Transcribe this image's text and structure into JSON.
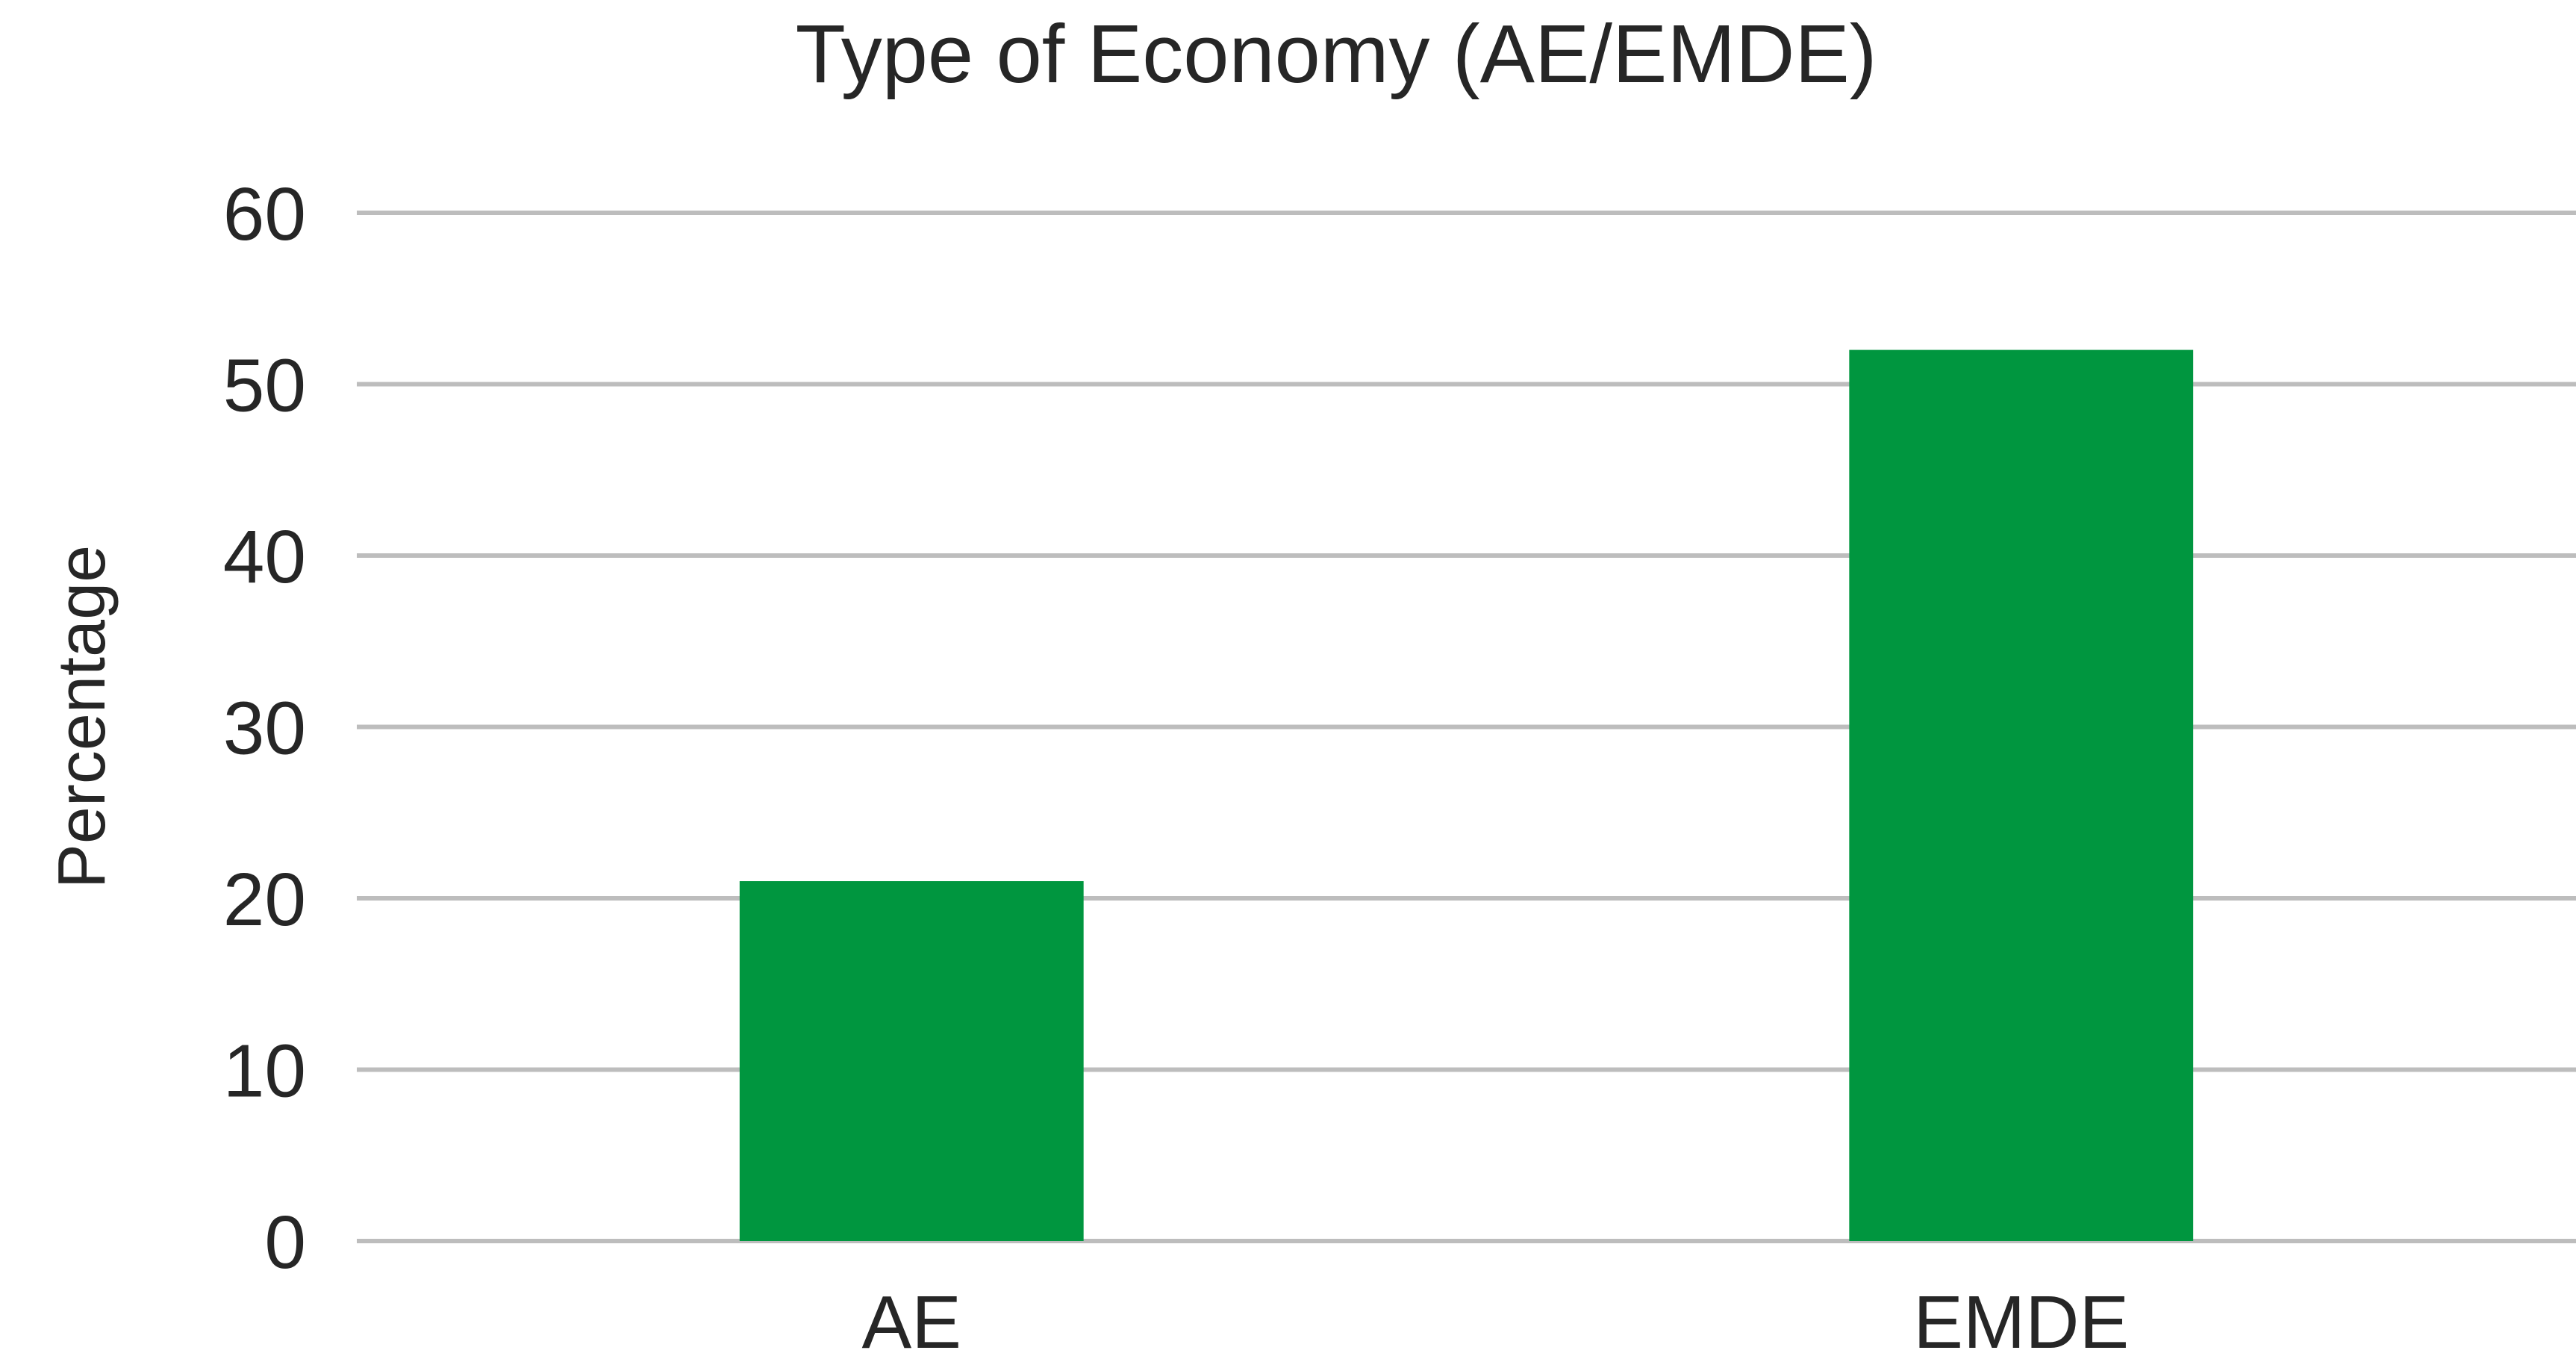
{
  "chart_data": {
    "type": "bar",
    "title": "Type of Economy (AE/EMDE)",
    "xlabel": "",
    "ylabel": "Percentage",
    "categories": [
      "AE",
      "EMDE"
    ],
    "values": [
      21,
      52
    ],
    "ylim": [
      0,
      60
    ],
    "yticks": [
      0,
      10,
      20,
      30,
      40,
      50,
      60
    ],
    "grid": true,
    "legend": "none",
    "bar_color": "#00963f"
  }
}
